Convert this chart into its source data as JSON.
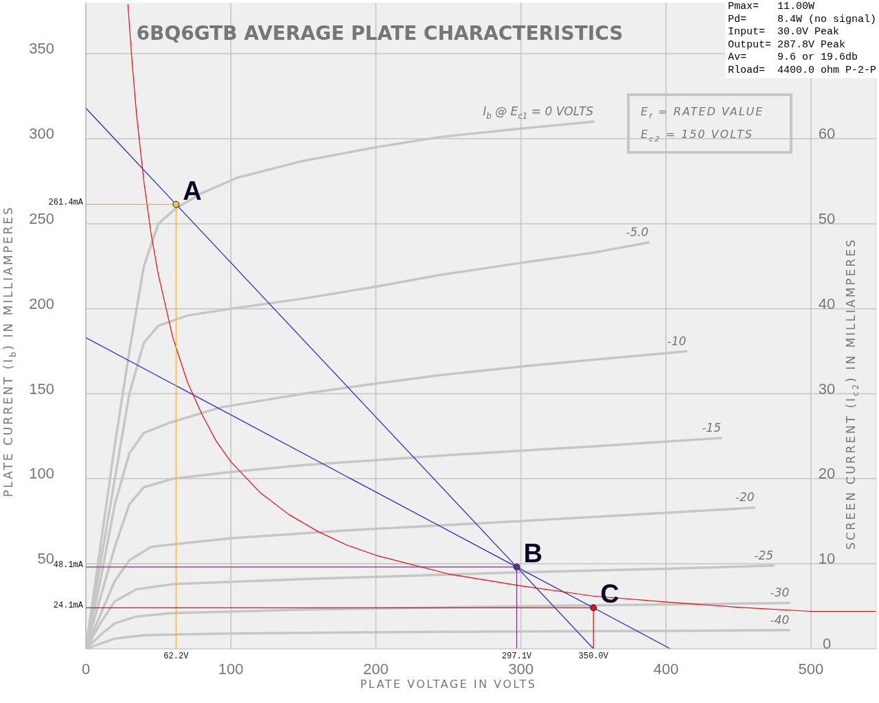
{
  "chart_data": {
    "type": "line",
    "title": "6BQ6GTB AVERAGE PLATE CHARACTERISTICS",
    "xlabel": "PLATE VOLTAGE IN VOLTS",
    "ylabel": "PLATE CURRENT (I$_{b}$) IN MILLIAMPERES",
    "y2label": "SCREEN CURRENT (I$_{c2}$) IN MILLIAMPERES",
    "xlim": [
      0,
      545
    ],
    "xticks": [
      0,
      100,
      200,
      300,
      400,
      500
    ],
    "ylim": [
      0,
      380
    ],
    "yticks": [
      50,
      100,
      150,
      200,
      250,
      300,
      350
    ],
    "y2lim": [
      0,
      76
    ],
    "y2ticks": [
      0,
      10,
      20,
      30,
      40,
      50,
      60
    ],
    "grid": true,
    "annotations": [
      "Pmax=   11.00W",
      "Pd=     8.4W (no signal)",
      "Input=  30.0V Peak",
      "Output= 287.8V Peak",
      "Av=     9.6 or 19.6db",
      "Rload=  4400.0 ohm P-2-P",
      "E$_{f}$ = RATED VALUE",
      "E$_{c2}$ = 150 VOLTS",
      {
        "text": "A",
        "x": 62.2,
        "y": 261.4
      },
      {
        "text": "B",
        "x": 297.1,
        "y": 48.1
      },
      {
        "text": "C",
        "x": 350,
        "y": 24.1
      },
      {
        "text": "261.4mA",
        "x": 0,
        "y": 261.4
      },
      {
        "text": "48.1mA",
        "x": 0,
        "y": 48.1
      },
      {
        "text": "24.1mA",
        "x": 0,
        "y": 24.1
      },
      {
        "text": "62.2V",
        "x": 62.2,
        "y": 0
      },
      {
        "text": "297.1V",
        "x": 297.1,
        "y": 0
      },
      {
        "text": "350.0V",
        "x": 350,
        "y": 0
      }
    ],
    "series": [
      {
        "name": "I$_{b}$ @ E$_{c1}$ = 0 VOLTS",
        "color": "#c6c6c6",
        "x": [
          0,
          10,
          20,
          30,
          40,
          50,
          62,
          80,
          104,
          150,
          200,
          244,
          300,
          350
        ],
        "values": [
          0,
          60,
          120,
          175,
          225,
          250,
          259,
          268,
          277,
          287,
          295,
          301,
          306,
          310
        ]
      },
      {
        "name": "-5.0",
        "color": "#c6c6c6",
        "x": [
          0,
          10,
          20,
          30,
          40,
          50,
          70,
          100,
          150,
          200,
          245,
          300,
          350,
          388
        ],
        "values": [
          0,
          50,
          100,
          150,
          180,
          190,
          196,
          200,
          206,
          213,
          220,
          227,
          233,
          239
        ]
      },
      {
        "name": "-10",
        "color": "#c6c6c6",
        "x": [
          0,
          10,
          20,
          30,
          40,
          58,
          93,
          150,
          200,
          245,
          300,
          350,
          414
        ],
        "values": [
          0,
          40,
          85,
          115,
          127,
          133,
          142,
          150,
          156,
          161,
          166,
          170,
          175
        ]
      },
      {
        "name": "-15",
        "color": "#c6c6c6",
        "x": [
          0,
          10,
          20,
          30,
          40,
          60,
          100,
          150,
          251,
          350,
          438
        ],
        "values": [
          0,
          30,
          60,
          85,
          95,
          100,
          104,
          108,
          114,
          119,
          124
        ]
      },
      {
        "name": "-20",
        "color": "#c6c6c6",
        "x": [
          0,
          10,
          20,
          30,
          45,
          100,
          187,
          298,
          400,
          461
        ],
        "values": [
          0,
          20,
          40,
          52,
          60,
          65,
          70,
          75,
          80,
          83
        ]
      },
      {
        "name": "-25",
        "color": "#c6c6c6",
        "x": [
          0,
          10,
          20,
          35,
          60,
          150,
          300,
          400,
          474
        ],
        "values": [
          0,
          15,
          28,
          35,
          38,
          41,
          45,
          47,
          49
        ]
      },
      {
        "name": "-30",
        "color": "#c6c6c6",
        "x": [
          0,
          10,
          20,
          35,
          60,
          150,
          300,
          400,
          485
        ],
        "values": [
          0,
          8,
          15,
          19,
          21,
          23,
          25,
          26,
          27
        ]
      },
      {
        "name": "-40",
        "color": "#c6c6c6",
        "x": [
          0,
          10,
          20,
          40,
          100,
          250,
          400,
          485
        ],
        "values": [
          0,
          3,
          6,
          8,
          9,
          10,
          10.5,
          11
        ]
      },
      {
        "color": "#2020c8",
        "x": [
          0,
          62.2,
          297.1,
          350
        ],
        "values": [
          318,
          261.4,
          48.1,
          0
        ]
      },
      {
        "color": "#2020c8",
        "x": [
          0,
          297.1,
          350,
          403
        ],
        "values": [
          183,
          48.1,
          24.1,
          0
        ]
      },
      {
        "color": "#ff0000",
        "x": [
          29,
          32,
          35,
          40,
          45,
          50,
          60,
          70,
          80,
          90,
          100,
          120,
          140,
          160,
          180,
          200,
          250,
          300,
          350,
          400,
          450,
          500,
          545
        ],
        "values": [
          379,
          344,
          314,
          275,
          244,
          220,
          183,
          157,
          138,
          122,
          110,
          92,
          79,
          69,
          61,
          55,
          44,
          37,
          31,
          27.5,
          24.4,
          22,
          22
        ]
      },
      {
        "color": "#f0b040",
        "x": [
          0,
          62.2,
          62.2
        ],
        "values": [
          261.4,
          261.4,
          0
        ]
      },
      {
        "color": "#7030a0",
        "x": [
          0,
          297.1,
          297.1
        ],
        "values": [
          48.1,
          48.1,
          0
        ]
      },
      {
        "color": "#ff0000",
        "x": [
          0,
          350,
          350
        ],
        "values": [
          24.1,
          24.1,
          0
        ]
      },
      {
        "type": "scatter",
        "marker": "circle",
        "x": [
          62.2,
          297.1,
          350
        ],
        "values": [
          261.4,
          48.1,
          24.1
        ],
        "colors": [
          "#f0c850",
          "#6a2c9a",
          "#e01030"
        ]
      }
    ]
  }
}
